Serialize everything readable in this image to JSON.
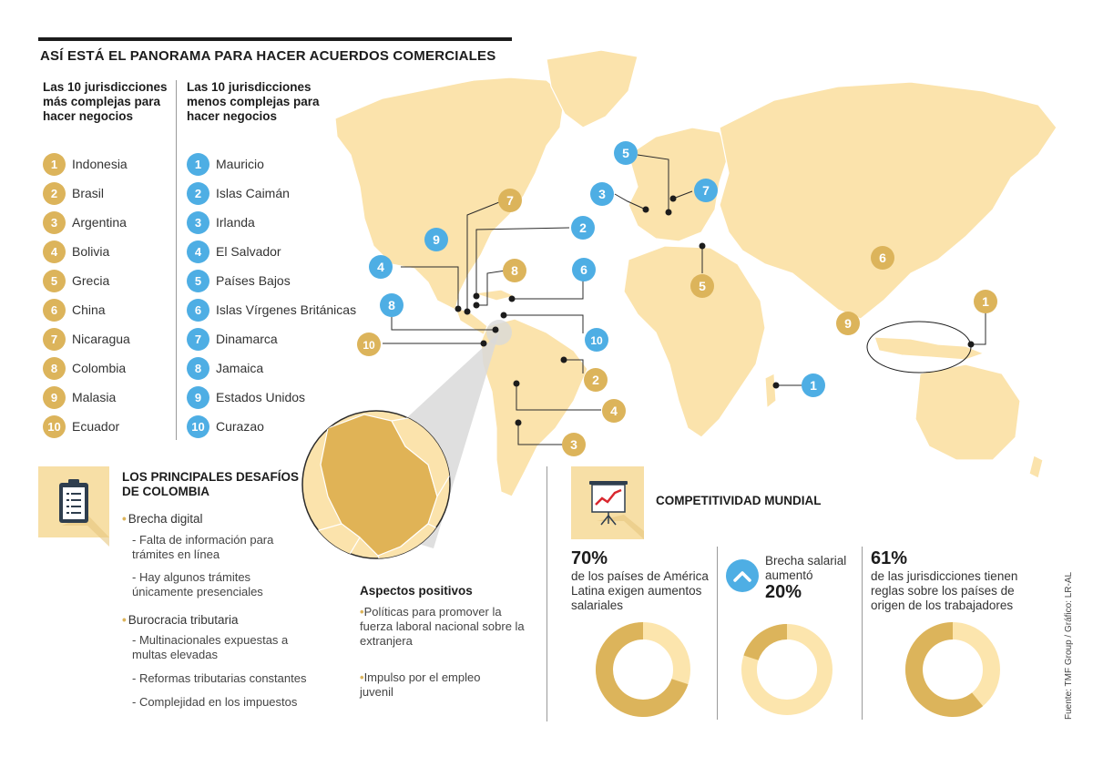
{
  "title": "ASÍ ESTÁ EL PANORAMA PARA HACER ACUERDOS COMERCIALES",
  "complex_heading": "Las 10 jurisdicciones más complejas para hacer negocios",
  "simple_heading": "Las 10 jurisdicciones menos complejas para hacer negocios",
  "complex_list": [
    "Indonesia",
    "Brasil",
    "Argentina",
    "Bolivia",
    "Grecia",
    "China",
    "Nicaragua",
    "Colombia",
    "Malasia",
    "Ecuador"
  ],
  "simple_list": [
    "Mauricio",
    "Islas Caimán",
    "Irlanda",
    "El Salvador",
    "Países Bajos",
    "Islas Vírgenes Británicas",
    "Dinamarca",
    "Jamaica",
    "Estados Unidos",
    "Curazao"
  ],
  "map_markers": [
    {
      "rank": "1",
      "type": "complex"
    },
    {
      "rank": "2",
      "type": "complex"
    },
    {
      "rank": "3",
      "type": "complex"
    },
    {
      "rank": "4",
      "type": "complex"
    },
    {
      "rank": "5",
      "type": "complex"
    },
    {
      "rank": "6",
      "type": "complex"
    },
    {
      "rank": "7",
      "type": "complex"
    },
    {
      "rank": "8",
      "type": "complex"
    },
    {
      "rank": "9",
      "type": "complex"
    },
    {
      "rank": "10",
      "type": "complex"
    },
    {
      "rank": "1",
      "type": "simple"
    },
    {
      "rank": "2",
      "type": "simple"
    },
    {
      "rank": "3",
      "type": "simple"
    },
    {
      "rank": "4",
      "type": "simple"
    },
    {
      "rank": "5",
      "type": "simple"
    },
    {
      "rank": "6",
      "type": "simple"
    },
    {
      "rank": "7",
      "type": "simple"
    },
    {
      "rank": "8",
      "type": "simple"
    },
    {
      "rank": "9",
      "type": "simple"
    },
    {
      "rank": "10",
      "type": "simple"
    }
  ],
  "challenges": {
    "title": "LOS PRINCIPALES DESAFÍOS DE COLOMBIA",
    "digital": "Brecha digital",
    "digital_items": [
      "- Falta de información para trámites en línea",
      "- Hay algunos trámites únicamente presenciales"
    ],
    "tax": "Burocracia tributaria",
    "tax_items": [
      "- Multinacionales expuestas a multas elevadas",
      "- Reformas tributarias constantes",
      "- Complejidad en los impuestos"
    ]
  },
  "positives": {
    "title": "Aspectos positivos",
    "items": [
      "Políticas para promover la fuerza laboral nacional sobre la extranjera",
      "Impulso por el empleo juvenil"
    ]
  },
  "competitiveness": {
    "title": "COMPETITIVIDAD MUNDIAL",
    "stat1_value": "70%",
    "stat1_text": "de los países de América Latina exigen aumentos salariales",
    "stat2_text": "Brecha salarial aumentó",
    "stat2_value": "20%",
    "stat3_value": "61%",
    "stat3_text": "de las jurisdicciones tienen reglas sobre los países de origen de los trabajadores"
  },
  "source": "Fuente: TMF Group / Gráfico: LR-AL",
  "colors": {
    "gold": "#dcb45b",
    "blue": "#4eaee4",
    "land": "#fbe3ac",
    "ring_light": "#fce5ad",
    "accent_bg": "#f7dfa6"
  },
  "chart_data": [
    {
      "type": "pie",
      "values": [
        70,
        30
      ],
      "labels": [
        "70%",
        ""
      ]
    },
    {
      "type": "pie",
      "values": [
        20,
        80
      ],
      "labels": [
        "20%",
        ""
      ]
    },
    {
      "type": "pie",
      "values": [
        61,
        39
      ],
      "labels": [
        "61%",
        ""
      ]
    }
  ]
}
